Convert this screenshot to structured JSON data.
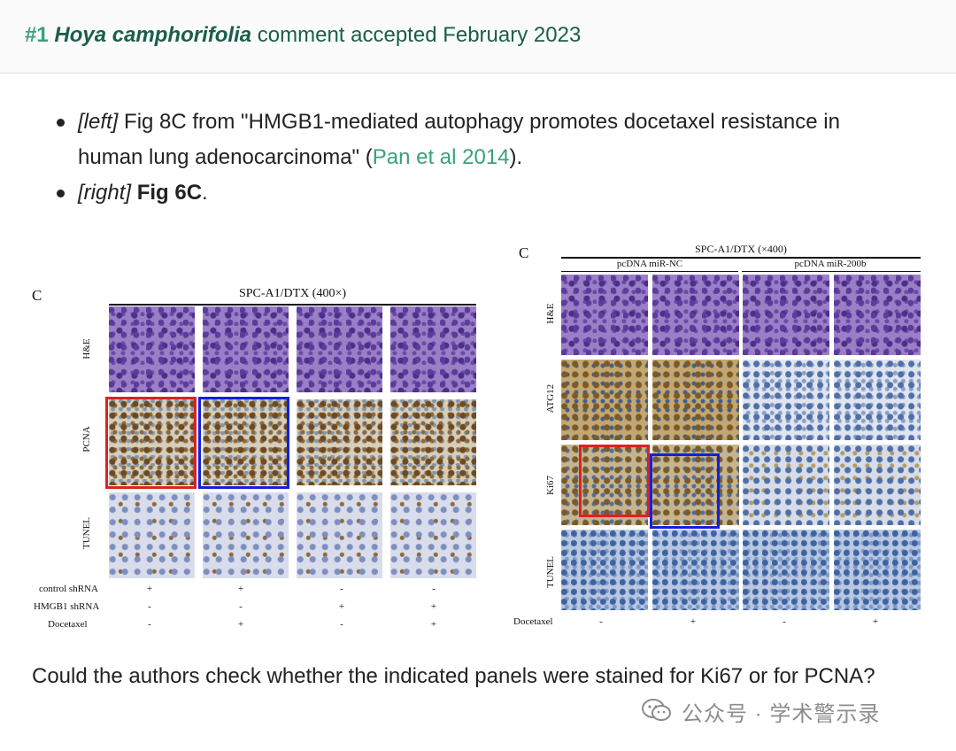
{
  "header": {
    "hash": "#1",
    "species": "Hoya camphorifolia",
    "rest": "comment accepted February 2023"
  },
  "bullets": [
    {
      "tag": "[left]",
      "pre": "Fig 8C from \"HMGB1-mediated autophagy promotes docetaxel resistance in human lung adenocarcinoma\" (",
      "link": "Pan et al 2014",
      "post": ")."
    },
    {
      "tag": "[right]",
      "strong": "Fig 6C",
      "post": "."
    }
  ],
  "left_figure": {
    "letter": "C",
    "title": "SPC-A1/DTX (400×)",
    "rows": [
      "H&E",
      "PCNA",
      "TUNEL"
    ],
    "treatments": [
      {
        "label": "control shRNA",
        "marks": [
          "+",
          "+",
          "-",
          "-"
        ]
      },
      {
        "label": "HMGB1 shRNA",
        "marks": [
          "-",
          "-",
          "+",
          "+"
        ]
      },
      {
        "label": "Docetaxel",
        "marks": [
          "-",
          "+",
          "-",
          "+"
        ]
      }
    ]
  },
  "right_figure": {
    "letter": "C",
    "title": "SPC-A1/DTX (×400)",
    "groups": [
      "pcDNA miR-NC",
      "pcDNA miR-200b"
    ],
    "rows": [
      "H&E",
      "ATG12",
      "Ki67",
      "TUNEL"
    ],
    "treatments": [
      {
        "label": "Docetaxel",
        "marks": [
          "-",
          "+",
          "-",
          "+"
        ]
      }
    ]
  },
  "question": "Could the authors check whether the indicated panels were stained for Ki67 or for PCNA?",
  "watermark": "公众号 · 学术警示录",
  "colors": {
    "accent": "#3aa178",
    "header_text": "#1b5e4a",
    "highlight_red": "#e02020",
    "highlight_blue": "#1020e0"
  }
}
